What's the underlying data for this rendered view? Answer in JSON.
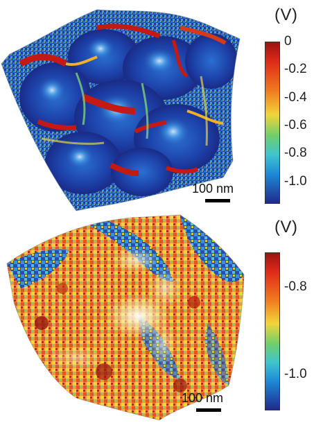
{
  "panels": [
    {
      "id": "top",
      "colorbar": {
        "unit": "(V)",
        "ticks": [
          "0",
          "-0.2",
          "-0.4",
          "-0.6",
          "-0.8",
          "-1.0"
        ],
        "tick_values": [
          0,
          -0.2,
          -0.4,
          -0.6,
          -0.8,
          -1.0
        ],
        "range": [
          -1.15,
          0
        ],
        "colormap": "jet"
      },
      "scalebar_label": "100 nm"
    },
    {
      "id": "bottom",
      "colorbar": {
        "unit": "(V)",
        "ticks": [
          "-0.8",
          "-1.0"
        ],
        "tick_values": [
          -0.8,
          -1.0
        ],
        "range": [
          -1.08,
          -0.72
        ],
        "colormap": "jet"
      },
      "scalebar_label": "100 nm"
    }
  ],
  "colors": {
    "jet_low": "#1f2a8c",
    "jet_mid_low": "#1e88d6",
    "jet_mid": "#6fcf6a",
    "jet_mid_high": "#f2d43a",
    "jet_high": "#9a1410"
  }
}
